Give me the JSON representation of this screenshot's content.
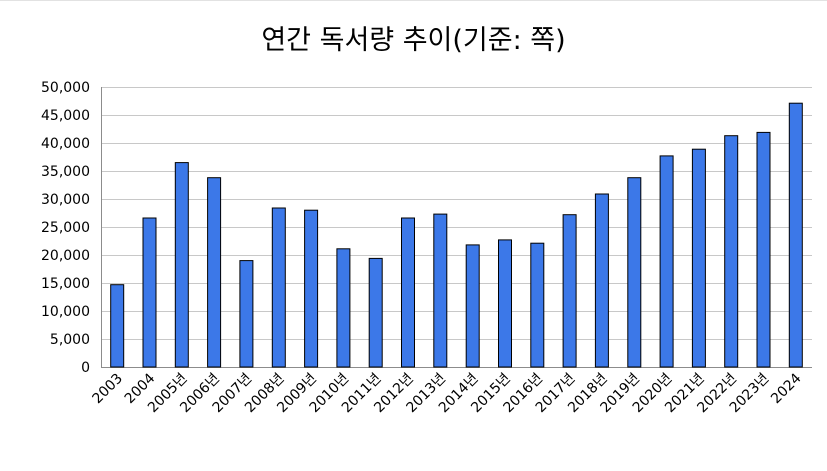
{
  "chart_data": {
    "type": "bar",
    "title": "연간 독서량 추이(기준: 쪽)",
    "categories": [
      "2003",
      "2004",
      "2005년",
      "2006년",
      "2007년",
      "2008년",
      "2009년",
      "2010년",
      "2011년",
      "2012년",
      "2013년",
      "2014년",
      "2015년",
      "2016년",
      "2017년",
      "2018년",
      "2019년",
      "2020년",
      "2021년",
      "2022년",
      "2023년",
      "2024"
    ],
    "values": [
      14700,
      26600,
      36500,
      33800,
      19000,
      28400,
      28000,
      21100,
      19400,
      26600,
      27300,
      21800,
      22700,
      22100,
      27200,
      30900,
      33800,
      37700,
      38900,
      41300,
      41900,
      47100
    ],
    "ylim": [
      0,
      50000
    ],
    "yticks": [
      0,
      5000,
      10000,
      15000,
      20000,
      25000,
      30000,
      35000,
      40000,
      45000,
      50000
    ],
    "ytick_labels": [
      "0",
      "5,000",
      "10,000",
      "15,000",
      "20,000",
      "25,000",
      "30,000",
      "35,000",
      "40,000",
      "45,000",
      "50,000"
    ],
    "grid": true,
    "legend": "none",
    "colors": {
      "bar": "#3c78e8",
      "bar_stroke": "#000000",
      "grid": "#c8c8c8"
    }
  }
}
